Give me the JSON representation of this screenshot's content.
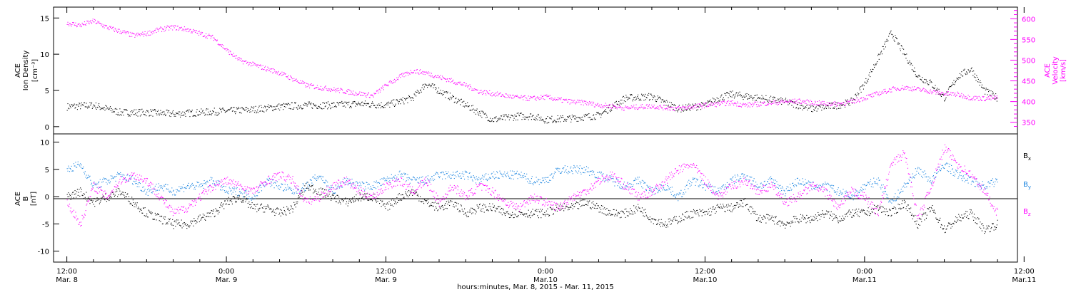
{
  "chart_data": [
    {
      "type": "scatter",
      "panel": "top",
      "ylabel_left": [
        "ACE",
        "Ion Density",
        "[cm⁻³]"
      ],
      "ylabel_right": [
        "ACE",
        "Velocity",
        "[km/s]"
      ],
      "ylim_left": [
        -1,
        16.5
      ],
      "ylim_right": [
        322,
        628
      ],
      "yticks_left": [
        "0",
        "5",
        "10",
        "15"
      ],
      "yticks_right": [
        "350",
        "400",
        "450",
        "500",
        "550",
        "600"
      ],
      "xlim_hours": [
        -1,
        71.5
      ],
      "series": [
        {
          "name": "",
          "axis": "left",
          "color": "#000000",
          "x_hours": [
            0,
            2,
            4,
            6,
            8,
            10,
            12,
            14,
            16,
            18,
            20,
            22,
            24,
            26,
            27,
            28,
            30,
            32,
            34,
            35,
            36,
            38,
            40,
            42,
            44,
            46,
            48,
            49,
            50,
            52,
            54,
            56,
            58,
            59,
            60,
            62,
            64,
            65,
            66,
            67,
            68,
            69,
            70
          ],
          "y": [
            2.8,
            3.0,
            2.0,
            2.0,
            1.8,
            2.0,
            2.2,
            2.4,
            2.8,
            3.0,
            3.0,
            3.2,
            3.0,
            4.0,
            6.0,
            5.0,
            3.0,
            1.0,
            1.5,
            1.5,
            1.0,
            1.2,
            1.6,
            4.0,
            4.2,
            2.5,
            3.0,
            4.0,
            4.5,
            4.0,
            3.5,
            2.5,
            3.0,
            3.5,
            6.0,
            13.0,
            7.0,
            6.0,
            4.0,
            7.0,
            8.0,
            5.0,
            4.0
          ]
        },
        {
          "name": "",
          "axis": "right",
          "color": "#ff00ff",
          "x_hours": [
            0,
            1,
            2,
            3,
            4,
            5,
            6,
            7,
            8,
            9,
            10,
            11,
            12,
            13,
            14,
            15,
            16,
            17,
            18,
            19,
            20,
            21,
            22,
            23,
            24,
            25,
            26,
            27,
            28,
            29,
            30,
            31,
            32,
            33,
            34,
            35,
            36,
            37,
            38,
            39,
            40,
            41,
            42,
            43,
            44,
            45,
            46,
            47,
            48,
            49,
            50,
            51,
            52,
            53,
            54,
            55,
            56,
            57,
            58,
            59,
            60,
            61,
            62,
            63,
            64,
            65,
            66,
            67,
            68,
            69,
            70
          ],
          "y": [
            590,
            585,
            595,
            580,
            570,
            560,
            565,
            575,
            580,
            575,
            565,
            555,
            525,
            500,
            490,
            480,
            470,
            455,
            440,
            435,
            430,
            425,
            420,
            415,
            440,
            460,
            475,
            470,
            460,
            450,
            440,
            425,
            420,
            415,
            410,
            408,
            412,
            405,
            400,
            398,
            392,
            390,
            385,
            388,
            390,
            386,
            384,
            388,
            392,
            395,
            398,
            392,
            395,
            398,
            400,
            402,
            398,
            396,
            395,
            400,
            410,
            420,
            430,
            435,
            430,
            425,
            420,
            418,
            410,
            408,
            410
          ]
        }
      ]
    },
    {
      "type": "scatter",
      "panel": "bottom",
      "ylabel_left": [
        "ACE",
        "B",
        "[nT]"
      ],
      "ylim": [
        -12,
        11.5
      ],
      "yticks": [
        "-10",
        "-5",
        "0",
        "5",
        "10"
      ],
      "xlim_hours": [
        -1,
        71.5
      ],
      "series": [
        {
          "name": "Bx",
          "color": "#000000",
          "x_hours": [
            0,
            1,
            2,
            3,
            4,
            5,
            6,
            7,
            8,
            9,
            10,
            11,
            12,
            13,
            14,
            15,
            16,
            17,
            18,
            19,
            20,
            21,
            22,
            23,
            24,
            25,
            26,
            27,
            28,
            29,
            30,
            31,
            32,
            33,
            34,
            35,
            36,
            37,
            38,
            39,
            40,
            41,
            42,
            43,
            44,
            45,
            46,
            47,
            48,
            49,
            50,
            51,
            52,
            53,
            54,
            55,
            56,
            57,
            58,
            59,
            60,
            61,
            62,
            63,
            64,
            65,
            66,
            67,
            68,
            69,
            70
          ],
          "y": [
            0,
            1,
            -1,
            0,
            1,
            -1,
            -3,
            -4,
            -5,
            -5,
            -4,
            -3,
            -1,
            0,
            -2,
            -2,
            -3,
            -2,
            2,
            1,
            0,
            -1,
            0,
            0,
            -2,
            0,
            1,
            -1,
            -2,
            -1,
            -3,
            -2,
            -2,
            -3,
            -3,
            -3,
            -3,
            -2,
            -2,
            -1,
            -2,
            -3,
            -3,
            -2,
            -4,
            -5,
            -4,
            -3,
            -3,
            -2,
            -2,
            -1,
            -4,
            -4,
            -5,
            -4,
            -4,
            -3,
            -4,
            -3,
            -3,
            -2,
            -3,
            -1,
            -5,
            -2,
            -6,
            -4,
            -3,
            -6,
            -5
          ]
        },
        {
          "name": "By",
          "color": "#1a84e0",
          "x_hours": [
            0,
            1,
            2,
            3,
            4,
            5,
            6,
            7,
            8,
            9,
            10,
            11,
            12,
            13,
            14,
            15,
            16,
            17,
            18,
            19,
            20,
            21,
            22,
            23,
            24,
            25,
            26,
            27,
            28,
            29,
            30,
            31,
            32,
            33,
            34,
            35,
            36,
            37,
            38,
            39,
            40,
            41,
            42,
            43,
            44,
            45,
            46,
            47,
            48,
            49,
            50,
            51,
            52,
            53,
            54,
            55,
            56,
            57,
            58,
            59,
            60,
            61,
            62,
            63,
            64,
            65,
            66,
            67,
            68,
            69,
            70
          ],
          "y": [
            5,
            6,
            2,
            3,
            4,
            3,
            1,
            2,
            1,
            2,
            2,
            3,
            1,
            1,
            0,
            3,
            2,
            1,
            2,
            4,
            1,
            3,
            2,
            2,
            3,
            4,
            3,
            3,
            4,
            4,
            4,
            3,
            4,
            4,
            4,
            3,
            3,
            5,
            5,
            5,
            4,
            3,
            2,
            3,
            1,
            2,
            0,
            3,
            2,
            1,
            3,
            4,
            2,
            3,
            1,
            3,
            2,
            2,
            1,
            0,
            2,
            3,
            -1,
            2,
            5,
            3,
            6,
            4,
            3,
            2,
            3
          ]
        },
        {
          "name": "Bz",
          "color": "#ff00ff",
          "x_hours": [
            0,
            1,
            2,
            3,
            4,
            5,
            6,
            7,
            8,
            9,
            10,
            11,
            12,
            13,
            14,
            15,
            16,
            17,
            18,
            19,
            20,
            21,
            22,
            23,
            24,
            25,
            26,
            27,
            28,
            29,
            30,
            31,
            32,
            33,
            34,
            35,
            36,
            37,
            38,
            39,
            40,
            41,
            42,
            43,
            44,
            45,
            46,
            47,
            48,
            49,
            50,
            51,
            52,
            53,
            54,
            55,
            56,
            57,
            58,
            59,
            60,
            61,
            62,
            63,
            64,
            65,
            66,
            67,
            68,
            69,
            70
          ],
          "y": [
            -1,
            -5,
            2,
            0,
            3,
            4,
            3,
            0,
            -3,
            -2,
            0,
            2,
            3,
            2,
            1,
            3,
            4,
            3,
            -1,
            0,
            2,
            3,
            1,
            0,
            2,
            3,
            1,
            3,
            -1,
            2,
            0,
            2,
            1,
            -1,
            -2,
            0,
            -1,
            -2,
            0,
            1,
            3,
            4,
            2,
            0,
            1,
            3,
            5,
            6,
            3,
            0,
            2,
            3,
            1,
            2,
            -1,
            0,
            2,
            1,
            -2,
            1,
            0,
            -3,
            6,
            8,
            -4,
            2,
            9,
            6,
            4,
            1,
            -3
          ]
        }
      ],
      "legend": [
        {
          "label": "B",
          "sub": "x",
          "color": "#000000"
        },
        {
          "label": "B",
          "sub": "y",
          "color": "#1a84e0"
        },
        {
          "label": "B",
          "sub": "z",
          "color": "#ff00ff"
        }
      ]
    }
  ],
  "xaxis": {
    "tick_hours": [
      0,
      12,
      24,
      36,
      48,
      60,
      72
    ],
    "tick_labels_time": [
      "12:00",
      "0:00",
      "12:00",
      "0:00",
      "12:00",
      "0:00",
      "12:00"
    ],
    "tick_labels_date": [
      "Mar. 8",
      "Mar. 9",
      "Mar. 9",
      "Mar.10",
      "Mar.10",
      "Mar.11",
      "Mar.11"
    ],
    "xlabel": "hours:minutes, Mar.  8, 2015 - Mar. 11, 2015"
  }
}
